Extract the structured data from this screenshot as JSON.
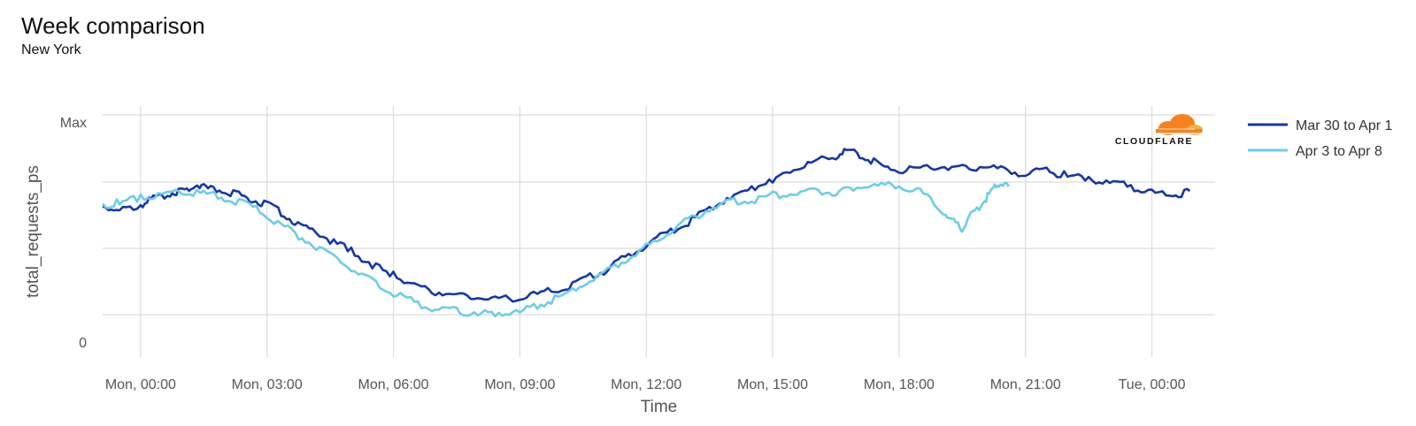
{
  "header": {
    "title": "Week comparison",
    "subtitle": "New York"
  },
  "logo": {
    "text": "CLOUDFLARE",
    "icon": "cloudflare-cloud-icon",
    "color": "#F6821F"
  },
  "chart_data": {
    "type": "line",
    "title": "Week comparison",
    "subtitle": "New York",
    "xlabel": "Time",
    "ylabel": "total_requests_ps",
    "x_ticks": [
      "Mon, 00:00",
      "Mon, 03:00",
      "Mon, 06:00",
      "Mon, 09:00",
      "Mon, 12:00",
      "Mon, 15:00",
      "Mon, 18:00",
      "Mon, 21:00",
      "Tue, 00:00"
    ],
    "y_ticks": [
      "0",
      "Max"
    ],
    "xlim_hours": [
      -0.9,
      25.5
    ],
    "ylim": [
      0,
      1
    ],
    "grid": true,
    "legend_position": "right",
    "series": [
      {
        "name": "Mar 30 to Apr 1",
        "color": "#1537a6",
        "points": [
          [
            -0.9,
            0.62
          ],
          [
            -0.5,
            0.6
          ],
          [
            0.0,
            0.63
          ],
          [
            0.3,
            0.66
          ],
          [
            0.7,
            0.68
          ],
          [
            1.0,
            0.69
          ],
          [
            1.3,
            0.72
          ],
          [
            1.6,
            0.7
          ],
          [
            2.0,
            0.69
          ],
          [
            2.4,
            0.67
          ],
          [
            2.8,
            0.64
          ],
          [
            3.2,
            0.61
          ],
          [
            3.6,
            0.56
          ],
          [
            4.0,
            0.52
          ],
          [
            4.5,
            0.47
          ],
          [
            5.0,
            0.42
          ],
          [
            5.5,
            0.36
          ],
          [
            6.0,
            0.31
          ],
          [
            6.5,
            0.27
          ],
          [
            7.0,
            0.24
          ],
          [
            7.5,
            0.22
          ],
          [
            8.0,
            0.21
          ],
          [
            8.5,
            0.2
          ],
          [
            9.0,
            0.21
          ],
          [
            9.5,
            0.23
          ],
          [
            10.0,
            0.25
          ],
          [
            10.5,
            0.29
          ],
          [
            11.0,
            0.33
          ],
          [
            11.5,
            0.39
          ],
          [
            12.0,
            0.45
          ],
          [
            12.5,
            0.5
          ],
          [
            13.0,
            0.55
          ],
          [
            13.5,
            0.61
          ],
          [
            14.0,
            0.66
          ],
          [
            14.5,
            0.7
          ],
          [
            15.0,
            0.74
          ],
          [
            15.5,
            0.79
          ],
          [
            16.0,
            0.82
          ],
          [
            16.5,
            0.85
          ],
          [
            16.8,
            0.87
          ],
          [
            17.2,
            0.84
          ],
          [
            17.6,
            0.8
          ],
          [
            18.0,
            0.78
          ],
          [
            18.5,
            0.79
          ],
          [
            19.0,
            0.8
          ],
          [
            19.5,
            0.79
          ],
          [
            20.0,
            0.8
          ],
          [
            20.5,
            0.78
          ],
          [
            21.0,
            0.77
          ],
          [
            21.5,
            0.78
          ],
          [
            22.0,
            0.76
          ],
          [
            22.5,
            0.74
          ],
          [
            23.0,
            0.73
          ],
          [
            23.5,
            0.71
          ],
          [
            24.0,
            0.68
          ],
          [
            24.5,
            0.67
          ],
          [
            24.9,
            0.69
          ]
        ]
      },
      {
        "name": "Apr 3 to Apr 8",
        "color": "#6ccde8",
        "points": [
          [
            -0.9,
            0.62
          ],
          [
            -0.5,
            0.64
          ],
          [
            0.0,
            0.66
          ],
          [
            0.5,
            0.68
          ],
          [
            1.0,
            0.69
          ],
          [
            1.5,
            0.68
          ],
          [
            2.0,
            0.66
          ],
          [
            2.5,
            0.63
          ],
          [
            3.0,
            0.58
          ],
          [
            3.5,
            0.52
          ],
          [
            4.0,
            0.46
          ],
          [
            4.5,
            0.4
          ],
          [
            5.0,
            0.34
          ],
          [
            5.5,
            0.28
          ],
          [
            6.0,
            0.23
          ],
          [
            6.5,
            0.19
          ],
          [
            7.0,
            0.16
          ],
          [
            7.5,
            0.15
          ],
          [
            8.0,
            0.14
          ],
          [
            8.5,
            0.14
          ],
          [
            9.0,
            0.15
          ],
          [
            9.5,
            0.18
          ],
          [
            10.0,
            0.22
          ],
          [
            10.5,
            0.27
          ],
          [
            11.0,
            0.32
          ],
          [
            11.5,
            0.38
          ],
          [
            12.0,
            0.44
          ],
          [
            12.5,
            0.5
          ],
          [
            13.0,
            0.56
          ],
          [
            13.5,
            0.61
          ],
          [
            14.0,
            0.64
          ],
          [
            14.5,
            0.65
          ],
          [
            15.0,
            0.67
          ],
          [
            15.5,
            0.68
          ],
          [
            16.0,
            0.69
          ],
          [
            16.5,
            0.68
          ],
          [
            17.0,
            0.7
          ],
          [
            17.5,
            0.72
          ],
          [
            18.0,
            0.71
          ],
          [
            18.5,
            0.69
          ],
          [
            19.0,
            0.6
          ],
          [
            19.3,
            0.55
          ],
          [
            19.5,
            0.52
          ],
          [
            19.7,
            0.58
          ],
          [
            20.0,
            0.64
          ],
          [
            20.2,
            0.69
          ],
          [
            20.4,
            0.73
          ],
          [
            20.6,
            0.71
          ]
        ]
      }
    ]
  }
}
